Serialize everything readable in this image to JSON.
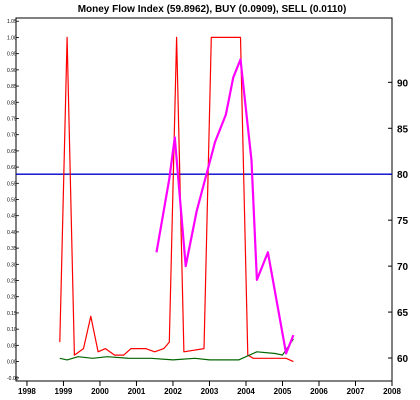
{
  "chart_data": {
    "type": "line",
    "title": "Money Flow Index (59.8962), BUY (0.0909), SELL (0.0110)",
    "xlabel": "",
    "ylabel": "",
    "grid": false,
    "legend": "none",
    "x_ticks": [
      "1998",
      "1999",
      "2000",
      "2001",
      "2002",
      "2003",
      "2004",
      "2005",
      "2006",
      "2007",
      "2008"
    ],
    "x_range": [
      1997.7,
      2008.0
    ],
    "y_left": {
      "range": [
        -0.06,
        1.06
      ],
      "ticks": [
        "-0.05",
        "0.00",
        "0.05",
        "0.10",
        "0.15",
        "0.20",
        "0.25",
        "0.30",
        "0.35",
        "0.40",
        "0.45",
        "0.50",
        "0.55",
        "0.60",
        "0.65",
        "0.70",
        "0.75",
        "0.80",
        "0.85",
        "0.90",
        "0.95",
        "1.00",
        "1.05"
      ]
    },
    "y_right": {
      "range": [
        57.5,
        97.0
      ],
      "ticks": [
        "60",
        "65",
        "70",
        "75",
        "80",
        "85",
        "90"
      ]
    },
    "reference_lines": [
      {
        "axis": "right",
        "value": 80,
        "color": "#0000cc"
      }
    ],
    "series": [
      {
        "axis": "left",
        "color": "#ff0000",
        "points": [
          [
            1998.9,
            0.06
          ],
          [
            1999.1,
            1.0
          ],
          [
            1999.3,
            0.02
          ],
          [
            1999.55,
            0.04
          ],
          [
            1999.75,
            0.14
          ],
          [
            1999.95,
            0.03
          ],
          [
            2000.15,
            0.04
          ],
          [
            2000.4,
            0.02
          ],
          [
            2000.65,
            0.02
          ],
          [
            2000.85,
            0.04
          ],
          [
            2001.25,
            0.04
          ],
          [
            2001.5,
            0.03
          ],
          [
            2001.75,
            0.04
          ],
          [
            2001.9,
            0.06
          ],
          [
            2002.1,
            1.0
          ],
          [
            2002.3,
            0.03
          ],
          [
            2002.85,
            0.04
          ],
          [
            2003.05,
            1.0
          ],
          [
            2003.85,
            1.0
          ],
          [
            2004.05,
            0.02
          ],
          [
            2004.2,
            0.01
          ],
          [
            2004.9,
            0.01
          ],
          [
            2005.1,
            0.01
          ],
          [
            2005.3,
            0.0
          ]
        ]
      },
      {
        "axis": "left",
        "color": "#006600",
        "points": [
          [
            1998.9,
            0.01
          ],
          [
            1999.1,
            0.005
          ],
          [
            1999.4,
            0.015
          ],
          [
            1999.8,
            0.01
          ],
          [
            2000.2,
            0.015
          ],
          [
            2000.8,
            0.01
          ],
          [
            2001.4,
            0.01
          ],
          [
            2002.0,
            0.005
          ],
          [
            2002.6,
            0.01
          ],
          [
            2003.0,
            0.005
          ],
          [
            2003.8,
            0.005
          ],
          [
            2004.3,
            0.03
          ],
          [
            2004.8,
            0.025
          ],
          [
            2005.0,
            0.02
          ],
          [
            2005.3,
            0.07
          ]
        ]
      },
      {
        "axis": "right",
        "color": "#ff00ff",
        "points": [
          [
            2001.55,
            71.5
          ],
          [
            2001.9,
            79.5
          ],
          [
            2002.05,
            84.0
          ],
          [
            2002.35,
            70.0
          ],
          [
            2002.65,
            76.0
          ],
          [
            2002.95,
            80.5
          ],
          [
            2003.15,
            83.5
          ],
          [
            2003.45,
            86.5
          ],
          [
            2003.65,
            90.5
          ],
          [
            2003.85,
            92.5
          ],
          [
            2004.15,
            81.5
          ],
          [
            2004.3,
            68.5
          ],
          [
            2004.6,
            71.5
          ],
          [
            2004.85,
            66.0
          ],
          [
            2005.1,
            60.5
          ],
          [
            2005.3,
            62.5
          ]
        ]
      }
    ]
  }
}
